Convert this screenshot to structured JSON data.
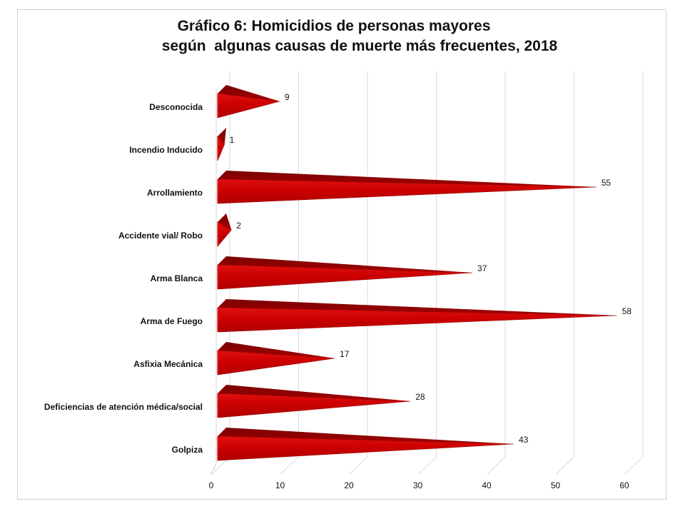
{
  "chart_data": {
    "type": "bar",
    "orientation": "horizontal",
    "bar_shape": "3d-cone",
    "title": "Gráfico 6: Homicidios de personas mayores",
    "subtitle": "según  algunas causas de muerte más frecuentes, 2018",
    "categories": [
      "Desconocida",
      "Incendio Inducido",
      "Arrollamiento",
      "Accidente vial/ Robo",
      "Arma Blanca",
      "Arma de Fuego",
      "Asfixia Mecánica",
      "Deficiencias de atención médica/social",
      "Golpiza"
    ],
    "values": [
      9,
      1,
      55,
      2,
      37,
      58,
      17,
      28,
      43
    ],
    "xlim": [
      0,
      60
    ],
    "xticks": [
      "0",
      "10",
      "20",
      "30",
      "40",
      "50",
      "60"
    ],
    "grid": true,
    "legend": "none",
    "bar_color": "#cc0000"
  }
}
